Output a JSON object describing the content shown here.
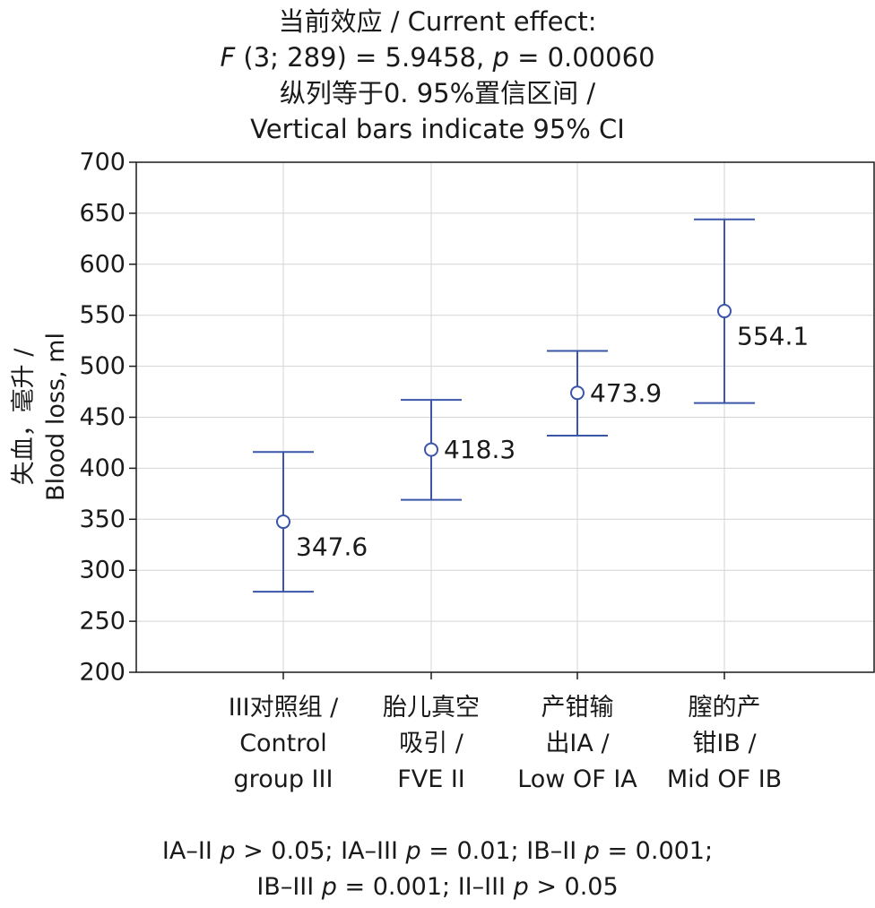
{
  "chart_data": {
    "type": "scatter",
    "title": {
      "line1": "当前效应 / Current effect:",
      "line2_pre": "F",
      "line2_mid": " (3; 289) = 5.9458, ",
      "line2_p": "p",
      "line2_post": " = 0.00060",
      "line3": "纵列等于0. 95%置信区间 /",
      "line4": "Vertical bars indicate 95% CI"
    },
    "ylabel": {
      "line1": "失血，毫升 /",
      "line2": "Blood loss, ml"
    },
    "ylim": [
      200,
      700
    ],
    "yticks": [
      "200",
      "250",
      "300",
      "350",
      "400",
      "450",
      "500",
      "550",
      "600",
      "650",
      "700"
    ],
    "grid": true,
    "categories": [
      {
        "lines": [
          "III对照组 /",
          "Control",
          "group III"
        ]
      },
      {
        "lines": [
          "胎儿真空",
          "吸引 /",
          "FVE II"
        ]
      },
      {
        "lines": [
          "产钳输",
          "出IA /",
          "Low OF IA"
        ]
      },
      {
        "lines": [
          "膣的产",
          "钳IB /",
          "Mid OF IB"
        ]
      }
    ],
    "points": [
      {
        "mean": 347.6,
        "lower": 279,
        "upper": 416,
        "label": "347.6"
      },
      {
        "mean": 418.3,
        "lower": 369,
        "upper": 467,
        "label": "418.3"
      },
      {
        "mean": 473.9,
        "lower": 432,
        "upper": 515,
        "label": "473.9"
      },
      {
        "mean": 554.1,
        "lower": 464,
        "upper": 644,
        "label": "554.1"
      }
    ],
    "colors": {
      "series": "#3b56a8",
      "grid": "#d4d4d4",
      "axis": "#1a1a1a"
    }
  },
  "footnote": {
    "l1_a": "IA–II ",
    "l1_p1": "p",
    "l1_b": " > 0.05; IA–III ",
    "l1_p2": "p",
    "l1_c": " = 0.01; IB–II ",
    "l1_p3": "p",
    "l1_d": " = 0.001;",
    "l2_a": "IB–III ",
    "l2_p1": "p",
    "l2_b": " = 0.001; II–III ",
    "l2_p2": "p",
    "l2_c": " > 0.05"
  }
}
